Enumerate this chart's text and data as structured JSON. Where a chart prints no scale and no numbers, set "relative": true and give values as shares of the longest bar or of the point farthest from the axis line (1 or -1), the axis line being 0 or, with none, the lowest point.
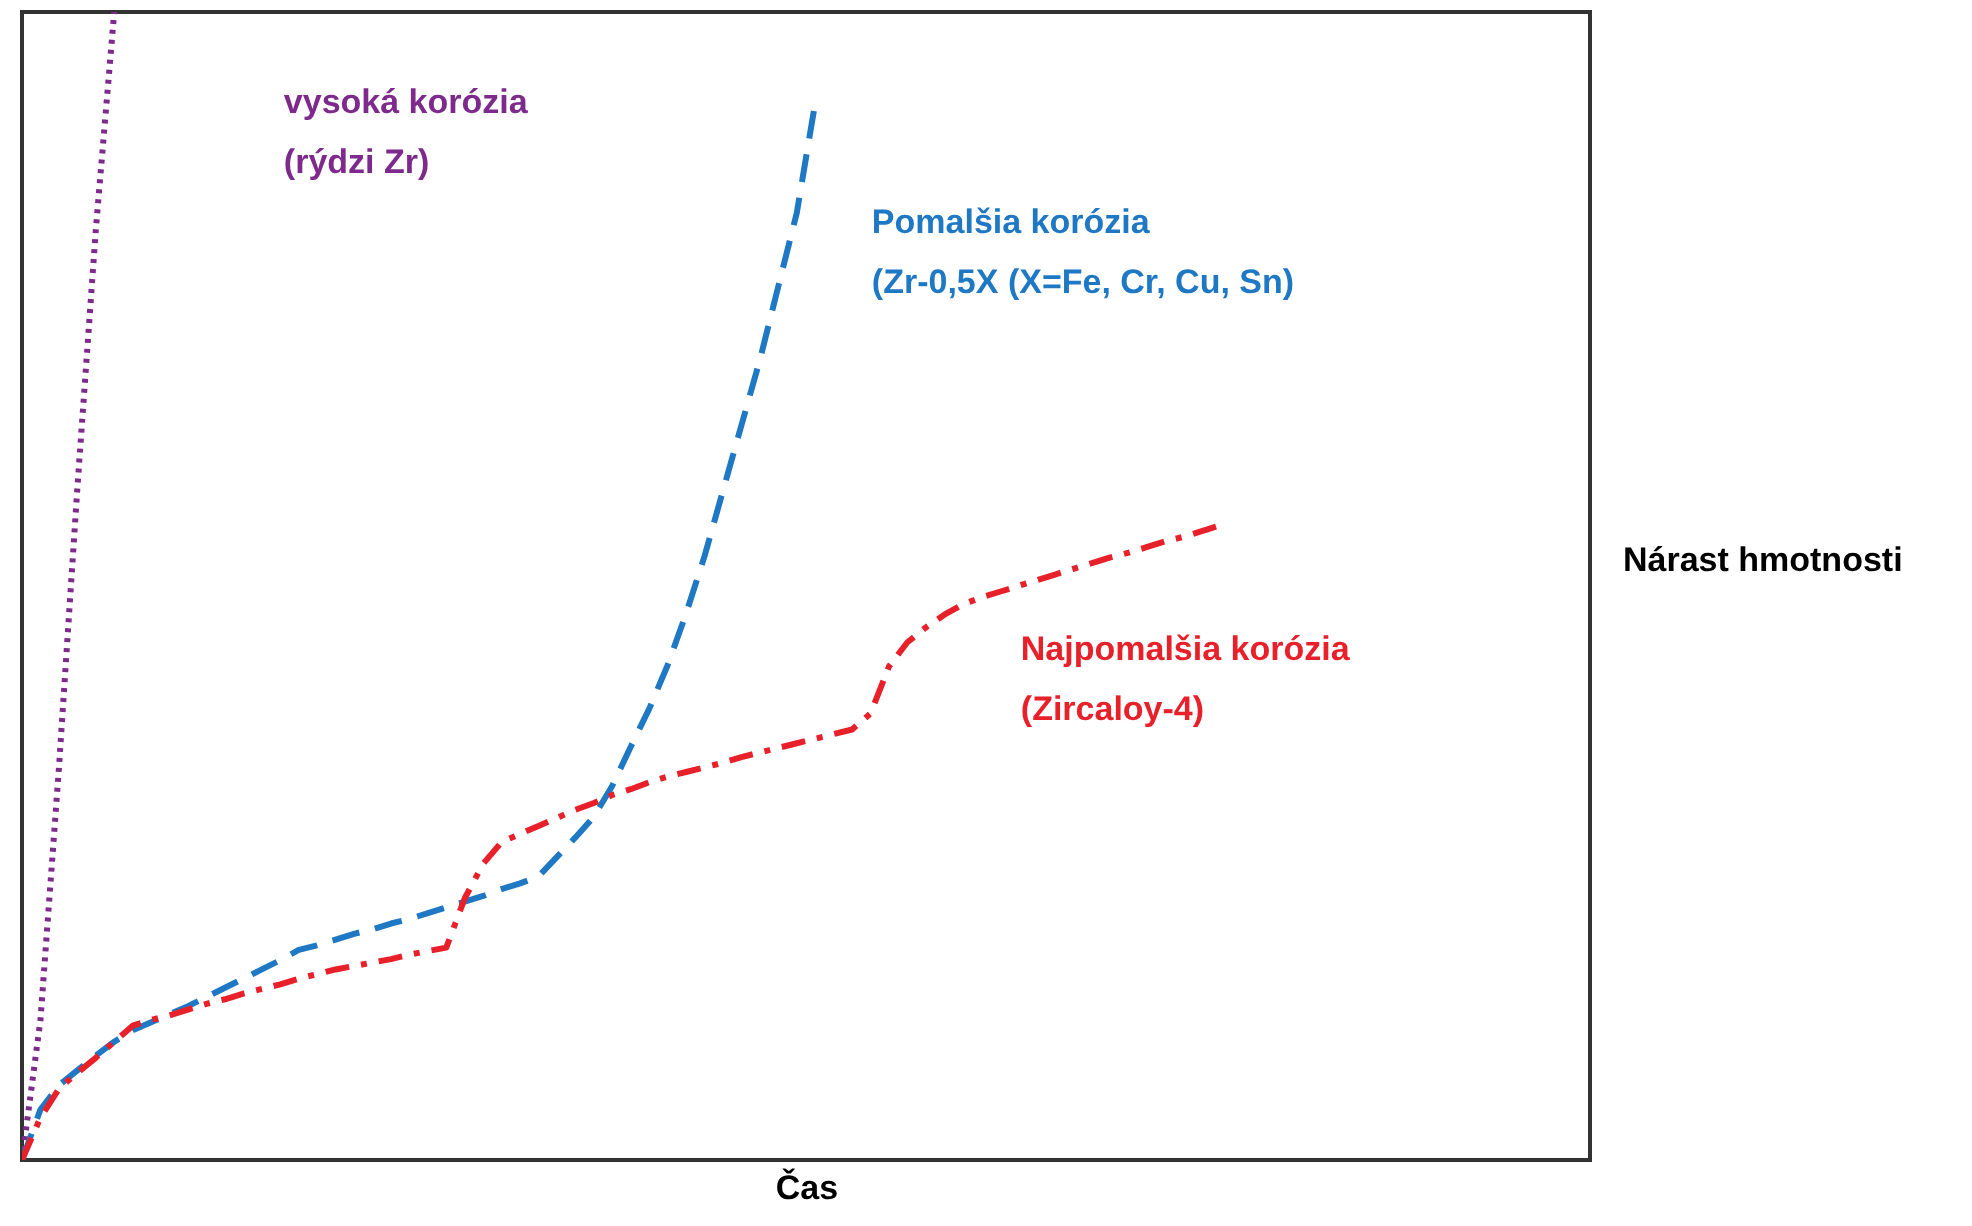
{
  "chart_data": {
    "type": "line",
    "relative": true,
    "xlabel": "Čas",
    "ylabel": "Nárast hmotnosti",
    "categories": [
      null,
      null,
      null,
      null,
      null,
      null,
      null,
      null,
      null,
      null,
      null,
      null,
      null,
      null,
      null,
      null,
      null,
      null,
      null,
      null,
      null,
      null,
      null,
      null,
      null,
      null,
      null,
      null,
      null,
      null,
      null,
      null,
      null,
      null,
      null,
      null,
      null,
      null,
      null,
      null,
      null,
      null,
      null,
      null,
      null,
      null,
      null,
      null,
      null,
      null,
      null,
      null,
      null,
      null,
      null,
      null,
      null,
      null,
      null,
      null,
      null,
      null,
      null,
      null,
      null,
      null,
      null,
      null,
      null,
      null,
      null,
      null,
      null,
      null,
      null,
      null,
      null,
      null,
      null,
      null,
      null,
      null,
      null,
      null,
      null,
      null
    ],
    "series": [
      {
        "name": "vysoká korózia\n(rýdzi Zr)",
        "color": "#7d2a8c",
        "line_style": "dotted",
        "values": [
          0,
          0.122,
          0.341,
          0.585,
          0.81,
          1.0,
          null,
          null,
          null,
          null,
          null,
          null,
          null,
          null,
          null,
          null,
          null,
          null,
          null,
          null,
          null,
          null,
          null,
          null,
          null,
          null,
          null,
          null,
          null,
          null,
          null,
          null,
          null,
          null,
          null,
          null,
          null,
          null,
          null,
          null,
          null,
          null,
          null,
          null,
          null,
          null,
          null,
          null,
          null,
          null,
          null,
          null,
          null,
          null,
          null,
          null,
          null,
          null,
          null,
          null,
          null,
          null,
          null,
          null,
          null,
          null,
          null,
          null,
          null,
          null,
          null,
          null,
          null,
          null,
          null,
          null,
          null,
          null,
          null,
          null,
          null,
          null,
          null,
          null,
          null,
          null
        ]
      },
      {
        "name": "Pomalšia korózia\n(Zr-0,5X (X=Fe, Cr, Cu, Sn)",
        "color": "#1f78c4",
        "line_style": "dashed",
        "values": [
          0,
          0.044,
          0.065,
          0.078,
          0.091,
          0.103,
          0.113,
          0.12,
          0.127,
          0.134,
          0.142,
          0.15,
          0.158,
          0.166,
          0.174,
          0.183,
          0.187,
          0.192,
          0.197,
          0.201,
          0.206,
          0.21,
          0.215,
          0.22,
          0.225,
          0.23,
          0.236,
          0.241,
          0.247,
          0.264,
          0.281,
          0.299,
          0.326,
          0.36,
          0.393,
          0.431,
          0.476,
          0.526,
          0.583,
          0.64,
          0.697,
          0.761,
          0.825,
          0.921,
          null,
          null,
          null,
          null,
          null,
          null,
          null,
          null,
          null,
          null,
          null,
          null,
          null,
          null,
          null,
          null,
          null,
          null,
          null,
          null,
          null,
          null,
          null,
          null,
          null,
          null,
          null,
          null,
          null,
          null,
          null,
          null,
          null,
          null,
          null,
          null,
          null,
          null,
          null,
          null,
          null,
          null
        ]
      },
      {
        "name": "Najpomalšia korózia\n(Zircaloy-4)",
        "color": "#e8202a",
        "line_style": "dashdot",
        "values": [
          0,
          0.037,
          0.062,
          0.076,
          0.089,
          0.103,
          0.117,
          0.122,
          0.126,
          0.131,
          0.136,
          0.14,
          0.145,
          0.149,
          0.153,
          0.158,
          0.162,
          0.166,
          0.169,
          0.172,
          0.175,
          0.179,
          0.182,
          0.185,
          0.228,
          0.258,
          0.277,
          0.284,
          0.291,
          0.298,
          0.305,
          0.311,
          0.318,
          0.323,
          0.329,
          0.334,
          0.338,
          0.342,
          0.346,
          0.351,
          0.355,
          0.359,
          0.363,
          0.367,
          0.371,
          0.375,
          0.389,
          0.43,
          0.451,
          0.464,
          0.475,
          0.484,
          0.49,
          0.495,
          0.5,
          0.505,
          0.51,
          0.515,
          0.52,
          0.525,
          0.529,
          0.534,
          0.539,
          0.543,
          0.548,
          0.553,
          null,
          null,
          null,
          null,
          null,
          null,
          null,
          null,
          null,
          null,
          null,
          null,
          null,
          null,
          null,
          null,
          null,
          null,
          null,
          null
        ]
      }
    ]
  }
}
